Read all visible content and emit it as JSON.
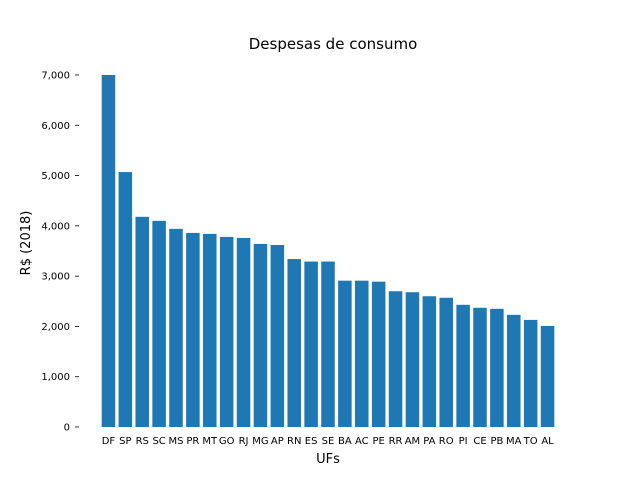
{
  "chart_data": {
    "type": "bar",
    "title": "Despesas de consumo",
    "xlabel": "UFs",
    "ylabel": "R$ (2018)",
    "ylim": [
      0,
      7000
    ],
    "yticks": [
      0,
      1000,
      2000,
      3000,
      4000,
      5000,
      6000,
      7000
    ],
    "ytick_labels": [
      "0",
      "1,000",
      "2,000",
      "3,000",
      "4,000",
      "5,000",
      "6,000",
      "7,000"
    ],
    "grid": false,
    "bar_color": "#1f77b4",
    "categories": [
      "DF",
      "SP",
      "RS",
      "SC",
      "MS",
      "PR",
      "MT",
      "GO",
      "RJ",
      "MG",
      "AP",
      "RN",
      "ES",
      "SE",
      "BA",
      "AC",
      "PE",
      "RR",
      "AM",
      "PA",
      "RO",
      "PI",
      "CE",
      "PB",
      "MA",
      "TO",
      "AL"
    ],
    "values": [
      7000,
      5070,
      4180,
      4100,
      3940,
      3860,
      3840,
      3780,
      3760,
      3640,
      3620,
      3340,
      3290,
      3290,
      2910,
      2910,
      2890,
      2700,
      2680,
      2600,
      2570,
      2430,
      2370,
      2350,
      2230,
      2130,
      2010
    ]
  }
}
